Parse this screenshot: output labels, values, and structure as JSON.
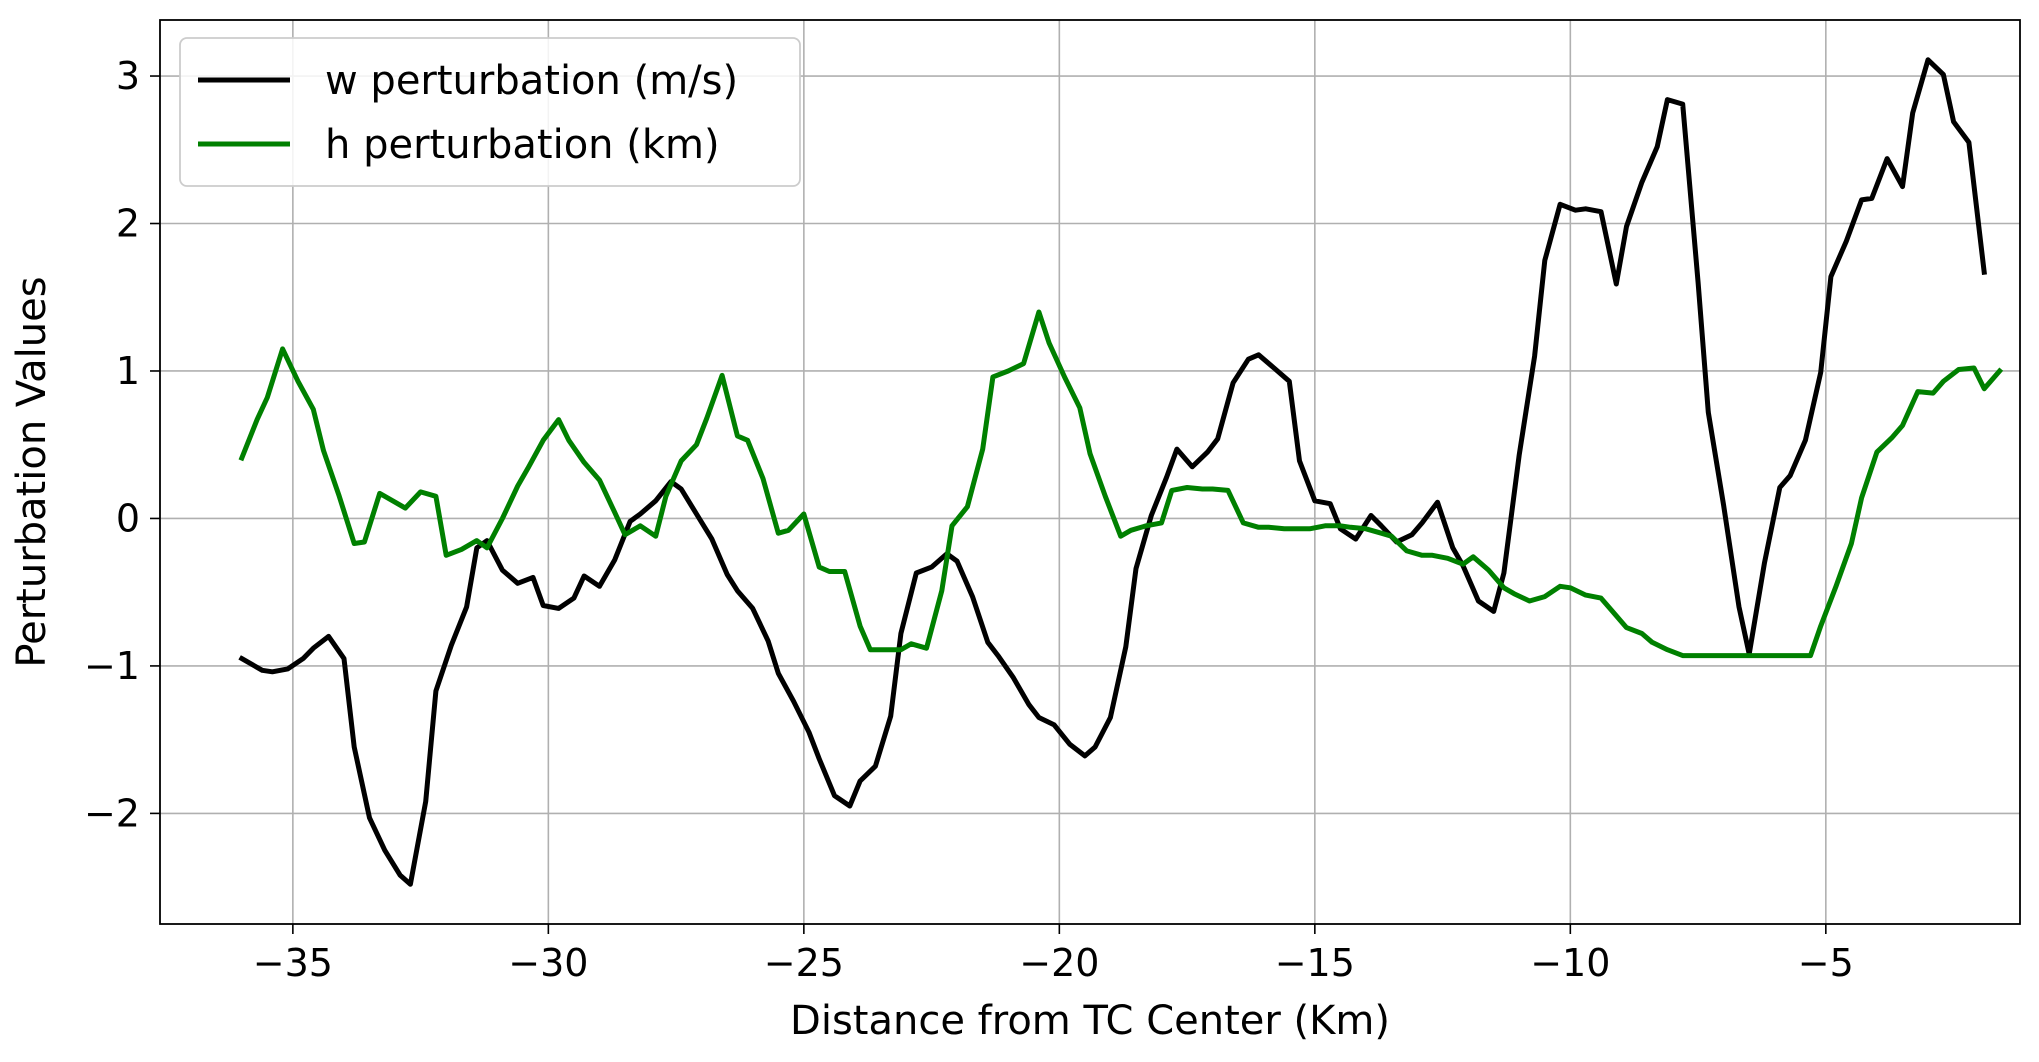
{
  "chart_data": {
    "type": "line",
    "title": "",
    "xlabel": "Distance from TC Center (Km)",
    "ylabel": "Perturbation Values",
    "xlim": [
      -37.6,
      -1.2
    ],
    "ylim": [
      -2.75,
      3.38
    ],
    "xticks": [
      -35,
      -30,
      -25,
      -20,
      -15,
      -10,
      -5
    ],
    "xtick_labels": [
      "−35",
      "−30",
      "−25",
      "−20",
      "−15",
      "−10",
      "−5"
    ],
    "yticks": [
      -2,
      -1,
      0,
      1,
      2,
      3
    ],
    "ytick_labels": [
      "−2",
      "−1",
      "0",
      "1",
      "2",
      "3"
    ],
    "grid": true,
    "legend_position": "upper-left",
    "series": [
      {
        "name": "w perturbation (m/s)",
        "color": "#000000",
        "points": [
          [
            -36.0,
            -0.95
          ],
          [
            -35.6,
            -1.03
          ],
          [
            -35.4,
            -1.04
          ],
          [
            -35.1,
            -1.02
          ],
          [
            -34.8,
            -0.95
          ],
          [
            -34.6,
            -0.88
          ],
          [
            -34.3,
            -0.8
          ],
          [
            -34.0,
            -0.95
          ],
          [
            -33.8,
            -1.55
          ],
          [
            -33.5,
            -2.03
          ],
          [
            -33.2,
            -2.25
          ],
          [
            -32.9,
            -2.42
          ],
          [
            -32.7,
            -2.48
          ],
          [
            -32.4,
            -1.92
          ],
          [
            -32.2,
            -1.17
          ],
          [
            -31.9,
            -0.86
          ],
          [
            -31.6,
            -0.6
          ],
          [
            -31.4,
            -0.2
          ],
          [
            -31.2,
            -0.15
          ],
          [
            -30.9,
            -0.35
          ],
          [
            -30.6,
            -0.44
          ],
          [
            -30.3,
            -0.4
          ],
          [
            -30.1,
            -0.59
          ],
          [
            -29.8,
            -0.61
          ],
          [
            -29.5,
            -0.54
          ],
          [
            -29.3,
            -0.39
          ],
          [
            -29.0,
            -0.46
          ],
          [
            -28.7,
            -0.28
          ],
          [
            -28.4,
            -0.02
          ],
          [
            -28.2,
            0.03
          ],
          [
            -27.9,
            0.12
          ],
          [
            -27.6,
            0.25
          ],
          [
            -27.4,
            0.2
          ],
          [
            -27.1,
            0.03
          ],
          [
            -26.8,
            -0.14
          ],
          [
            -26.5,
            -0.38
          ],
          [
            -26.3,
            -0.49
          ],
          [
            -26.0,
            -0.61
          ],
          [
            -25.7,
            -0.83
          ],
          [
            -25.5,
            -1.05
          ],
          [
            -25.2,
            -1.24
          ],
          [
            -24.9,
            -1.45
          ],
          [
            -24.7,
            -1.63
          ],
          [
            -24.4,
            -1.88
          ],
          [
            -24.1,
            -1.95
          ],
          [
            -23.9,
            -1.78
          ],
          [
            -23.6,
            -1.68
          ],
          [
            -23.3,
            -1.34
          ],
          [
            -23.1,
            -0.78
          ],
          [
            -22.8,
            -0.37
          ],
          [
            -22.5,
            -0.33
          ],
          [
            -22.2,
            -0.24
          ],
          [
            -22.0,
            -0.29
          ],
          [
            -21.7,
            -0.53
          ],
          [
            -21.4,
            -0.84
          ],
          [
            -21.2,
            -0.93
          ],
          [
            -20.9,
            -1.08
          ],
          [
            -20.6,
            -1.26
          ],
          [
            -20.4,
            -1.35
          ],
          [
            -20.1,
            -1.4
          ],
          [
            -19.8,
            -1.53
          ],
          [
            -19.5,
            -1.61
          ],
          [
            -19.3,
            -1.55
          ],
          [
            -19.0,
            -1.35
          ],
          [
            -18.7,
            -0.87
          ],
          [
            -18.5,
            -0.34
          ],
          [
            -18.2,
            0.02
          ],
          [
            -17.9,
            0.28
          ],
          [
            -17.7,
            0.47
          ],
          [
            -17.4,
            0.35
          ],
          [
            -17.1,
            0.45
          ],
          [
            -16.9,
            0.54
          ],
          [
            -16.6,
            0.92
          ],
          [
            -16.3,
            1.08
          ],
          [
            -16.1,
            1.11
          ],
          [
            -15.8,
            1.02
          ],
          [
            -15.5,
            0.93
          ],
          [
            -15.3,
            0.39
          ],
          [
            -15.0,
            0.12
          ],
          [
            -14.7,
            0.1
          ],
          [
            -14.5,
            -0.07
          ],
          [
            -14.2,
            -0.14
          ],
          [
            -13.9,
            0.02
          ],
          [
            -13.7,
            -0.05
          ],
          [
            -13.4,
            -0.16
          ],
          [
            -13.1,
            -0.11
          ],
          [
            -12.9,
            -0.03
          ],
          [
            -12.6,
            0.11
          ],
          [
            -12.3,
            -0.2
          ],
          [
            -12.1,
            -0.32
          ],
          [
            -11.8,
            -0.56
          ],
          [
            -11.5,
            -0.63
          ],
          [
            -11.3,
            -0.37
          ],
          [
            -11.0,
            0.43
          ],
          [
            -10.7,
            1.1
          ],
          [
            -10.5,
            1.75
          ],
          [
            -10.2,
            2.13
          ],
          [
            -9.9,
            2.09
          ],
          [
            -9.7,
            2.1
          ],
          [
            -9.4,
            2.08
          ],
          [
            -9.1,
            1.59
          ],
          [
            -8.9,
            1.98
          ],
          [
            -8.6,
            2.28
          ],
          [
            -8.3,
            2.52
          ],
          [
            -8.1,
            2.84
          ],
          [
            -7.8,
            2.81
          ],
          [
            -7.5,
            1.6
          ],
          [
            -7.3,
            0.72
          ],
          [
            -7.0,
            0.09
          ],
          [
            -6.7,
            -0.6
          ],
          [
            -6.5,
            -0.92
          ],
          [
            -6.2,
            -0.3
          ],
          [
            -5.9,
            0.21
          ],
          [
            -5.7,
            0.29
          ],
          [
            -5.4,
            0.53
          ],
          [
            -5.1,
            0.99
          ],
          [
            -4.9,
            1.64
          ],
          [
            -4.6,
            1.88
          ],
          [
            -4.3,
            2.16
          ],
          [
            -4.1,
            2.17
          ],
          [
            -3.8,
            2.44
          ],
          [
            -3.5,
            2.25
          ],
          [
            -3.3,
            2.75
          ],
          [
            -3.0,
            3.11
          ],
          [
            -2.7,
            3.01
          ],
          [
            -2.5,
            2.69
          ],
          [
            -2.2,
            2.55
          ],
          [
            -1.9,
            1.67
          ]
        ]
      },
      {
        "name": "h perturbation (km)",
        "color": "#008000",
        "points": [
          [
            -36.0,
            0.41
          ],
          [
            -35.7,
            0.67
          ],
          [
            -35.5,
            0.82
          ],
          [
            -35.2,
            1.15
          ],
          [
            -34.9,
            0.93
          ],
          [
            -34.6,
            0.74
          ],
          [
            -34.4,
            0.46
          ],
          [
            -34.1,
            0.16
          ],
          [
            -33.8,
            -0.17
          ],
          [
            -33.6,
            -0.16
          ],
          [
            -33.3,
            0.17
          ],
          [
            -33.0,
            0.11
          ],
          [
            -32.8,
            0.07
          ],
          [
            -32.5,
            0.18
          ],
          [
            -32.2,
            0.15
          ],
          [
            -32.0,
            -0.25
          ],
          [
            -31.7,
            -0.21
          ],
          [
            -31.4,
            -0.15
          ],
          [
            -31.2,
            -0.2
          ],
          [
            -30.9,
            0.0
          ],
          [
            -30.6,
            0.22
          ],
          [
            -30.4,
            0.34
          ],
          [
            -30.1,
            0.53
          ],
          [
            -29.8,
            0.67
          ],
          [
            -29.6,
            0.53
          ],
          [
            -29.3,
            0.38
          ],
          [
            -29.0,
            0.26
          ],
          [
            -28.7,
            0.04
          ],
          [
            -28.5,
            -0.11
          ],
          [
            -28.2,
            -0.05
          ],
          [
            -27.9,
            -0.12
          ],
          [
            -27.7,
            0.15
          ],
          [
            -27.4,
            0.39
          ],
          [
            -27.1,
            0.5
          ],
          [
            -26.9,
            0.68
          ],
          [
            -26.6,
            0.97
          ],
          [
            -26.3,
            0.56
          ],
          [
            -26.1,
            0.53
          ],
          [
            -25.8,
            0.27
          ],
          [
            -25.5,
            -0.1
          ],
          [
            -25.3,
            -0.08
          ],
          [
            -25.0,
            0.03
          ],
          [
            -24.7,
            -0.33
          ],
          [
            -24.5,
            -0.36
          ],
          [
            -24.2,
            -0.36
          ],
          [
            -23.9,
            -0.73
          ],
          [
            -23.7,
            -0.89
          ],
          [
            -23.4,
            -0.89
          ],
          [
            -23.1,
            -0.89
          ],
          [
            -22.9,
            -0.85
          ],
          [
            -22.6,
            -0.88
          ],
          [
            -22.3,
            -0.49
          ],
          [
            -22.1,
            -0.05
          ],
          [
            -21.8,
            0.08
          ],
          [
            -21.5,
            0.47
          ],
          [
            -21.3,
            0.96
          ],
          [
            -21.0,
            1.0
          ],
          [
            -20.7,
            1.05
          ],
          [
            -20.4,
            1.4
          ],
          [
            -20.2,
            1.19
          ],
          [
            -19.9,
            0.96
          ],
          [
            -19.6,
            0.75
          ],
          [
            -19.4,
            0.44
          ],
          [
            -19.1,
            0.15
          ],
          [
            -18.8,
            -0.12
          ],
          [
            -18.6,
            -0.08
          ],
          [
            -18.3,
            -0.05
          ],
          [
            -18.0,
            -0.03
          ],
          [
            -17.8,
            0.19
          ],
          [
            -17.5,
            0.21
          ],
          [
            -17.2,
            0.2
          ],
          [
            -17.0,
            0.2
          ],
          [
            -16.7,
            0.19
          ],
          [
            -16.4,
            -0.03
          ],
          [
            -16.1,
            -0.06
          ],
          [
            -15.9,
            -0.06
          ],
          [
            -15.6,
            -0.07
          ],
          [
            -15.3,
            -0.07
          ],
          [
            -15.1,
            -0.07
          ],
          [
            -14.8,
            -0.05
          ],
          [
            -14.5,
            -0.05
          ],
          [
            -14.3,
            -0.06
          ],
          [
            -14.0,
            -0.07
          ],
          [
            -13.7,
            -0.1
          ],
          [
            -13.5,
            -0.12
          ],
          [
            -13.2,
            -0.22
          ],
          [
            -12.9,
            -0.25
          ],
          [
            -12.7,
            -0.25
          ],
          [
            -12.4,
            -0.27
          ],
          [
            -12.1,
            -0.31
          ],
          [
            -11.9,
            -0.26
          ],
          [
            -11.6,
            -0.35
          ],
          [
            -11.3,
            -0.47
          ],
          [
            -11.1,
            -0.51
          ],
          [
            -10.8,
            -0.56
          ],
          [
            -10.5,
            -0.53
          ],
          [
            -10.2,
            -0.46
          ],
          [
            -10.0,
            -0.47
          ],
          [
            -9.7,
            -0.52
          ],
          [
            -9.4,
            -0.54
          ],
          [
            -9.2,
            -0.62
          ],
          [
            -8.9,
            -0.74
          ],
          [
            -8.6,
            -0.78
          ],
          [
            -8.4,
            -0.84
          ],
          [
            -8.1,
            -0.89
          ],
          [
            -7.8,
            -0.93
          ],
          [
            -7.6,
            -0.93
          ],
          [
            -7.0,
            -0.93
          ],
          [
            -6.2,
            -0.93
          ],
          [
            -5.3,
            -0.93
          ],
          [
            -5.1,
            -0.73
          ],
          [
            -4.8,
            -0.46
          ],
          [
            -4.5,
            -0.17
          ],
          [
            -4.3,
            0.14
          ],
          [
            -4.0,
            0.45
          ],
          [
            -3.7,
            0.55
          ],
          [
            -3.5,
            0.63
          ],
          [
            -3.2,
            0.86
          ],
          [
            -2.9,
            0.85
          ],
          [
            -2.7,
            0.93
          ],
          [
            -2.4,
            1.01
          ],
          [
            -2.1,
            1.02
          ],
          [
            -1.9,
            0.88
          ],
          [
            -1.6,
            1.0
          ]
        ]
      }
    ]
  }
}
